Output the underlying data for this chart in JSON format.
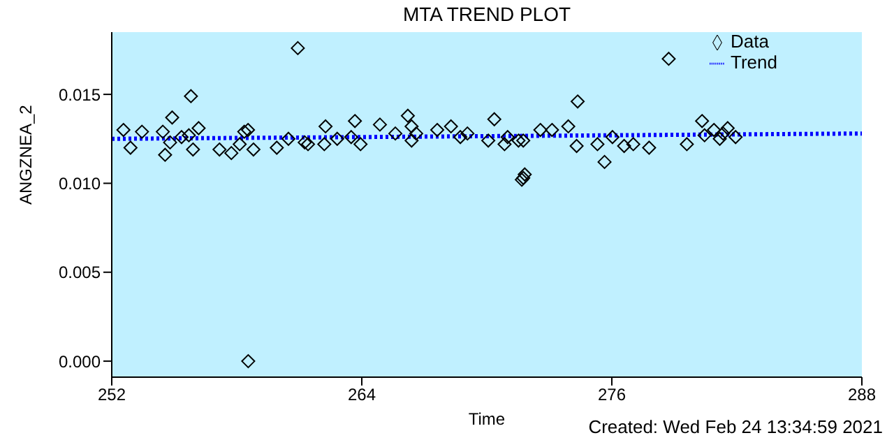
{
  "chart_data": {
    "type": "scatter",
    "title": "MTA TREND PLOT",
    "xlabel": "Time",
    "ylabel": "ANGZNEA_2",
    "annotations": [
      "Created: Wed Feb 24 13:34:59 2021"
    ],
    "xlim": [
      252,
      288
    ],
    "xticks": [
      252,
      264,
      276,
      288
    ],
    "ylim": [
      -0.0009,
      0.0185
    ],
    "yticks": [
      {
        "value": 0,
        "label": "0.000"
      },
      {
        "value": 0.005,
        "label": "0.005"
      },
      {
        "value": 0.01,
        "label": "0.010"
      },
      {
        "value": 0.015,
        "label": "0.015"
      }
    ],
    "grid": false,
    "legend": "top right",
    "series": [
      {
        "name": "Data",
        "color": "#000000",
        "marker": "diamond",
        "x": [
          252.56,
          252.9,
          253.45,
          254.45,
          254.56,
          254.9,
          254.8,
          255.35,
          255.8,
          255.7,
          255.9,
          256.17,
          257.17,
          257.74,
          258.14,
          258.36,
          258.54,
          258.8,
          258.55,
          259.92,
          260.48,
          260.93,
          261.26,
          261.42,
          262.2,
          262.26,
          262.82,
          263.49,
          263.67,
          263.94,
          264.87,
          265.61,
          266.21,
          266.39,
          266.39,
          266.61,
          267.62,
          268.28,
          268.73,
          269.07,
          270.07,
          270.36,
          270.85,
          271.0,
          271.52,
          271.75,
          271.75,
          271.82,
          271.68,
          272.57,
          273.13,
          273.91,
          274.36,
          274.31,
          275.31,
          275.65,
          276.03,
          276.59,
          277.03,
          277.79,
          278.73,
          279.6,
          280.33,
          280.45,
          280.9,
          281.18,
          281.34,
          281.56,
          281.94
        ],
        "values": [
          0.013,
          0.012,
          0.0129,
          0.0129,
          0.0116,
          0.0137,
          0.0123,
          0.0126,
          0.0149,
          0.0127,
          0.0119,
          0.0131,
          0.0119,
          0.0117,
          0.0122,
          0.0129,
          0.013,
          0.0119,
          0,
          0.012,
          0.0125,
          0.0176,
          0.0123,
          0.0122,
          0.0122,
          0.0132,
          0.0125,
          0.0126,
          0.0135,
          0.0122,
          0.0133,
          0.0128,
          0.0138,
          0.0132,
          0.0124,
          0.0128,
          0.013,
          0.0132,
          0.0126,
          0.0128,
          0.0124,
          0.0136,
          0.0122,
          0.0126,
          0.0124,
          0.0124,
          0.0103,
          0.0105,
          0.0102,
          0.013,
          0.013,
          0.0132,
          0.0146,
          0.0121,
          0.0122,
          0.0112,
          0.0126,
          0.0121,
          0.0122,
          0.012,
          0.017,
          0.0122,
          0.0135,
          0.0127,
          0.013,
          0.0125,
          0.0128,
          0.0131,
          0.0126
        ]
      },
      {
        "name": "Trend",
        "type": "line",
        "color": "#0000ff",
        "line_style": "dotted",
        "x": [
          252,
          288
        ],
        "values": [
          0.0125,
          0.0128
        ]
      }
    ]
  }
}
